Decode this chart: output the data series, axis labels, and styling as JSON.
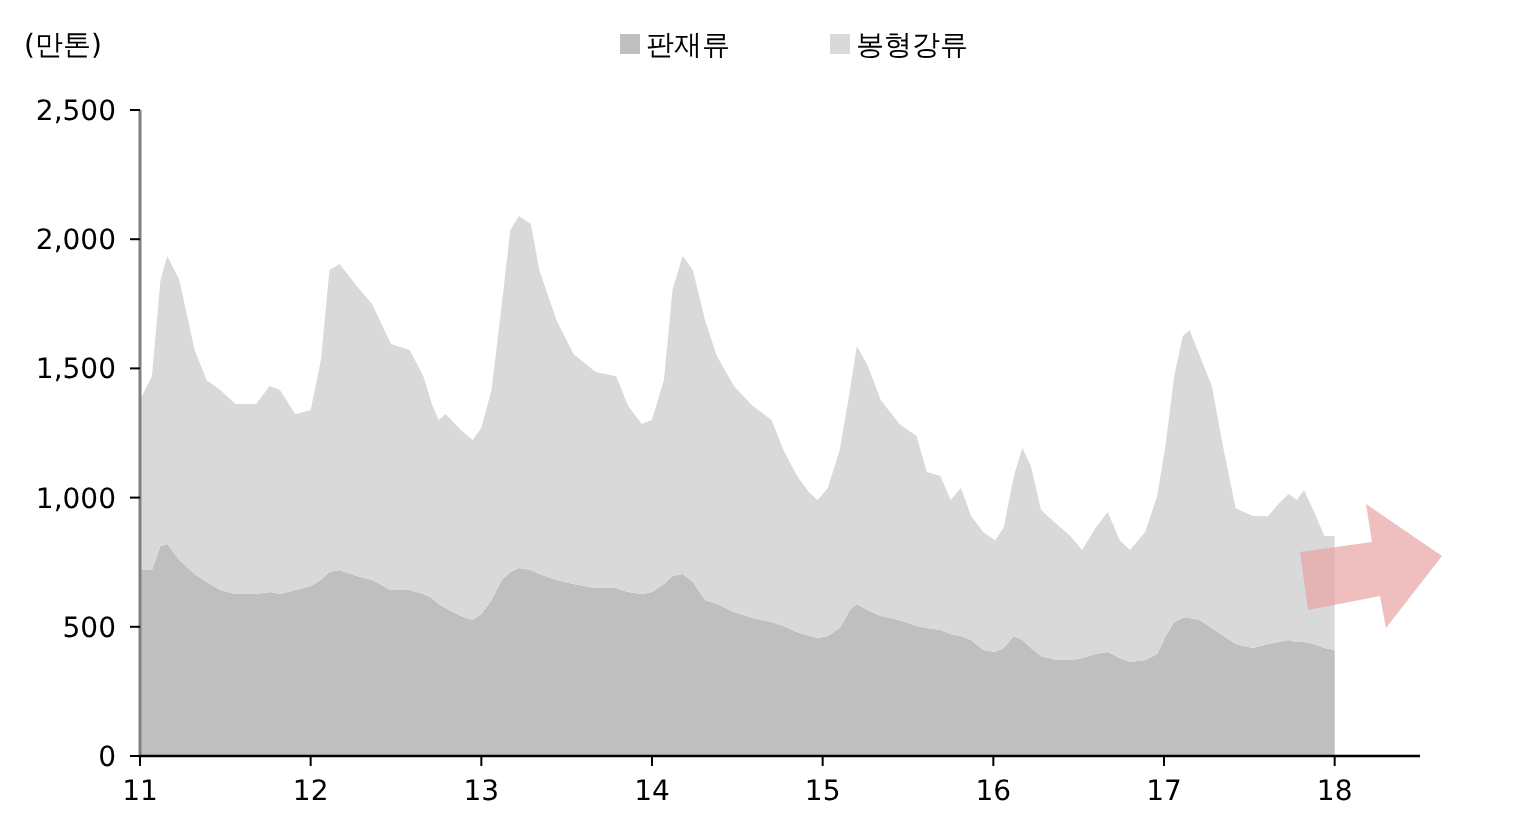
{
  "chart_data": {
    "type": "area",
    "stacked": true,
    "ylabel": "(만톤)",
    "legend": "top",
    "x": [
      11.0,
      11.07,
      11.12,
      11.16,
      11.23,
      11.32,
      11.39,
      11.47,
      11.56,
      11.68,
      11.76,
      11.82,
      11.91,
      12.0,
      12.06,
      12.11,
      12.17,
      12.27,
      12.36,
      12.47,
      12.58,
      12.66,
      12.71,
      12.75,
      12.79,
      12.88,
      12.95,
      13.0,
      13.06,
      13.12,
      13.17,
      13.22,
      13.29,
      13.34,
      13.44,
      13.54,
      13.67,
      13.79,
      13.86,
      13.94,
      14.0,
      14.07,
      14.12,
      14.18,
      14.24,
      14.31,
      14.38,
      14.48,
      14.59,
      14.7,
      14.77,
      14.85,
      14.92,
      14.97,
      15.03,
      15.1,
      15.16,
      15.2,
      15.26,
      15.34,
      15.45,
      15.55,
      15.61,
      15.69,
      15.75,
      15.81,
      15.87,
      15.94,
      16.01,
      16.06,
      16.12,
      16.17,
      16.22,
      16.28,
      16.37,
      16.45,
      16.52,
      16.6,
      16.67,
      16.74,
      16.8,
      16.89,
      16.96,
      17.01,
      17.06,
      17.11,
      17.15,
      17.21,
      17.28,
      17.35,
      17.42,
      17.52,
      17.61,
      17.67,
      17.73,
      17.78,
      17.82,
      17.88,
      17.94,
      18.0
    ],
    "series": [
      {
        "name": "판재류",
        "color": "#bfbfbf",
        "values": [
          720,
          720,
          813,
          820,
          759,
          704,
          673,
          642,
          627,
          627,
          635,
          627,
          642,
          658,
          681,
          712,
          720,
          697,
          681,
          642,
          642,
          627,
          611,
          588,
          573,
          542,
          526,
          550,
          604,
          681,
          712,
          728,
          720,
          704,
          681,
          666,
          650,
          650,
          635,
          627,
          635,
          666,
          697,
          704,
          673,
          604,
          588,
          557,
          534,
          519,
          503,
          480,
          464,
          457,
          464,
          495,
          565,
          588,
          565,
          542,
          526,
          503,
          495,
          488,
          472,
          464,
          449,
          410,
          402,
          418,
          464,
          449,
          418,
          387,
          372,
          372,
          379,
          395,
          402,
          379,
          364,
          372,
          395,
          464,
          519,
          534,
          534,
          526,
          495,
          464,
          433,
          418,
          433,
          441,
          449,
          441,
          441,
          433,
          418,
          410
        ]
      },
      {
        "name": "봉형강류",
        "color": "#d9d9d9",
        "values": [
          658,
          751,
          1029,
          1115,
          1084,
          867,
          782,
          774,
          735,
          735,
          797,
          789,
          681,
          681,
          851,
          1169,
          1184,
          1122,
          1068,
          952,
          929,
          844,
          751,
          712,
          751,
          720,
          697,
          720,
          813,
          1068,
          1324,
          1362,
          1339,
          1176,
          1006,
          890,
          836,
          820,
          720,
          658,
          666,
          789,
          1107,
          1231,
          1207,
          1084,
          960,
          875,
          820,
          782,
          681,
          604,
          557,
          534,
          573,
          689,
          851,
          998,
          952,
          836,
          759,
          735,
          604,
          596,
          519,
          573,
          480,
          457,
          433,
          464,
          619,
          743,
          704,
          565,
          526,
          480,
          418,
          488,
          542,
          457,
          433,
          495,
          611,
          743,
          952,
          1091,
          1115,
          1022,
          937,
          720,
          526,
          511,
          495,
          534,
          565,
          550,
          588,
          511,
          433,
          441
        ]
      }
    ],
    "xlim": [
      11,
      18.5
    ],
    "xticks": [
      11,
      12,
      13,
      14,
      15,
      16,
      17,
      18
    ],
    "ylim": [
      0,
      2500
    ],
    "yticks": [
      {
        "value": 0,
        "label": "0"
      },
      {
        "value": 500,
        "label": "500"
      },
      {
        "value": 1000,
        "label": "1,000"
      },
      {
        "value": 1500,
        "label": "1,500"
      },
      {
        "value": 2000,
        "label": "2,000"
      },
      {
        "value": 2500,
        "label": "2,500"
      }
    ]
  }
}
